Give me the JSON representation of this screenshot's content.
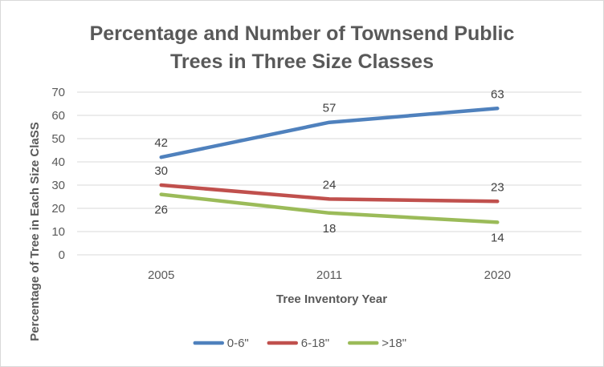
{
  "chart_data": {
    "type": "line",
    "title_lines": [
      "Percentage and Number of Townsend Public",
      "Trees in Three Size Classes"
    ],
    "xlabel": "Tree Inventory Year",
    "ylabel": "Percentage of Tree in Each Size ClaSS",
    "categories": [
      "2005",
      "2011",
      "2020"
    ],
    "ylim": [
      0,
      70
    ],
    "yticks": [
      "0",
      "10",
      "20",
      "30",
      "40",
      "50",
      "60",
      "70"
    ],
    "grid": true,
    "legend_position": "bottom",
    "series": [
      {
        "name": "0-6\"",
        "values": [
          42,
          57,
          63
        ],
        "labels": [
          "42",
          "57",
          "63"
        ],
        "color": "#4f81bd"
      },
      {
        "name": "6-18\"",
        "values": [
          30,
          24,
          23
        ],
        "labels": [
          "30",
          "24",
          "23"
        ],
        "color": "#c0504d"
      },
      {
        "name": ">18\"",
        "values": [
          26,
          18,
          14
        ],
        "labels": [
          "26",
          "18",
          "14"
        ],
        "color": "#9bbb59"
      }
    ]
  }
}
